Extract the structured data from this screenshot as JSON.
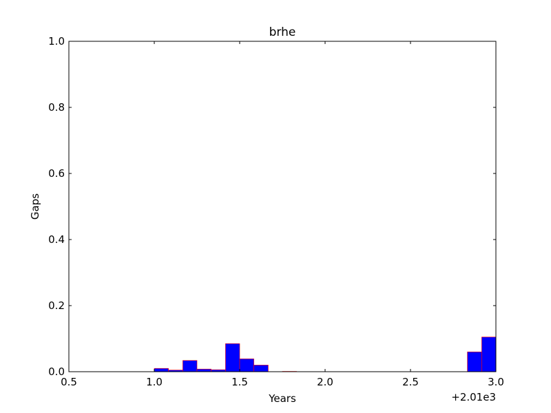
{
  "chart_data": {
    "type": "bar",
    "title": "brhe",
    "xlabel": "Years",
    "ylabel": "Gaps",
    "x_offset_label": "+2.01e3",
    "xlim": [
      0.5,
      3.0
    ],
    "ylim": [
      0.0,
      1.0
    ],
    "xticks": [
      "0.5",
      "1.0",
      "1.5",
      "2.0",
      "2.5",
      "3.0"
    ],
    "yticks": [
      "0.0",
      "0.2",
      "0.4",
      "0.6",
      "0.8",
      "1.0"
    ],
    "grid": false,
    "bar_color": "#0000ff",
    "edge_color": "#ff0000",
    "bins": [
      {
        "x0": 1.0,
        "x1": 1.083,
        "value": 0.01
      },
      {
        "x0": 1.083,
        "x1": 1.167,
        "value": 0.005
      },
      {
        "x0": 1.167,
        "x1": 1.25,
        "value": 0.034
      },
      {
        "x0": 1.25,
        "x1": 1.333,
        "value": 0.008
      },
      {
        "x0": 1.333,
        "x1": 1.417,
        "value": 0.006
      },
      {
        "x0": 1.417,
        "x1": 1.5,
        "value": 0.085
      },
      {
        "x0": 1.5,
        "x1": 1.583,
        "value": 0.039
      },
      {
        "x0": 1.583,
        "x1": 1.667,
        "value": 0.02
      },
      {
        "x0": 1.75,
        "x1": 1.833,
        "value": 0.001
      },
      {
        "x0": 2.833,
        "x1": 2.917,
        "value": 0.06
      },
      {
        "x0": 2.917,
        "x1": 3.0,
        "value": 0.105
      }
    ]
  }
}
